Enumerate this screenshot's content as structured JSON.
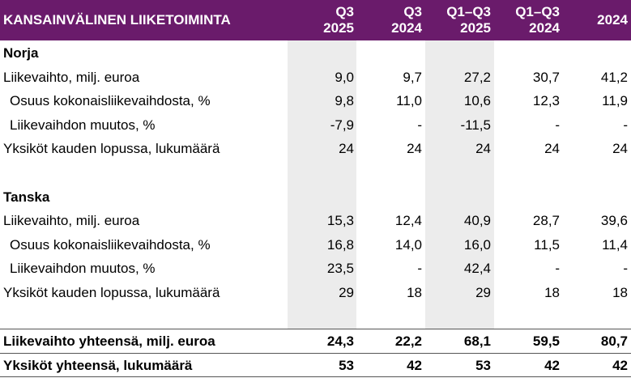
{
  "header": {
    "title": "KANSAINVÄLINEN LIIKETOIMINTA",
    "columns": [
      [
        "Q3",
        "2025"
      ],
      [
        "Q3",
        "2024"
      ],
      [
        "Q1–Q3",
        "2025"
      ],
      [
        "Q1–Q3",
        "2024"
      ],
      [
        "2024"
      ]
    ]
  },
  "sections": [
    {
      "title": "Norja",
      "rows": [
        [
          "Liikevaihto, milj. euroa",
          "9,0",
          "9,7",
          "27,2",
          "30,7",
          "41,2"
        ],
        [
          "Osuus kokonaisliikevaihdosta, %",
          "9,8",
          "11,0",
          "10,6",
          "12,3",
          "11,9"
        ],
        [
          "Liikevaihdon muutos, %",
          "-7,9",
          "-",
          "-11,5",
          "-",
          "-"
        ],
        [
          "Yksiköt kauden lopussa, lukumäärä",
          "24",
          "24",
          "24",
          "24",
          "24"
        ]
      ]
    },
    {
      "title": "Tanska",
      "rows": [
        [
          "Liikevaihto, milj. euroa",
          "15,3",
          "12,4",
          "40,9",
          "28,7",
          "39,6"
        ],
        [
          "Osuus kokonaisliikevaihdosta, %",
          "16,8",
          "14,0",
          "16,0",
          "11,5",
          "11,4"
        ],
        [
          "Liikevaihdon muutos, %",
          "23,5",
          "-",
          "42,4",
          "-",
          "-"
        ],
        [
          "Yksiköt kauden lopussa, lukumäärä",
          "29",
          "18",
          "29",
          "18",
          "18"
        ]
      ]
    }
  ],
  "totals": [
    [
      "Liikevaihto yhteensä, milj. euroa",
      "24,3",
      "22,2",
      "68,1",
      "59,5",
      "80,7"
    ],
    [
      "Yksiköt yhteensä, lukumäärä",
      "53",
      "42",
      "53",
      "42",
      "42"
    ]
  ]
}
